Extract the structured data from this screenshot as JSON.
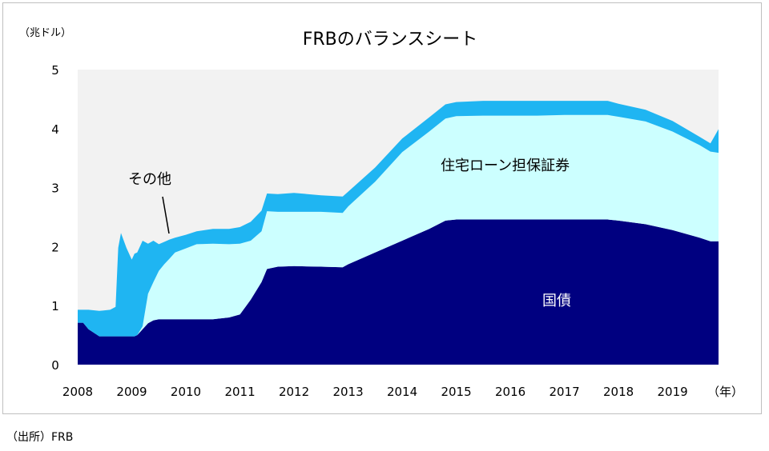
{
  "chart_data": {
    "type": "area",
    "title": "FRBのバランスシート",
    "unit_label": "（兆ドル）",
    "x_unit_label": "（年）",
    "ylim": [
      0,
      5
    ],
    "y_ticks": [
      "0",
      "1",
      "2",
      "3",
      "4",
      "5"
    ],
    "x_ticks": [
      "2008",
      "2009",
      "2010",
      "2011",
      "2012",
      "2013",
      "2014",
      "2015",
      "2016",
      "2017",
      "2018",
      "2019"
    ],
    "xlim": [
      2008.0,
      2019.85
    ],
    "stacking": "stacked",
    "grid": false,
    "legend": "none",
    "x": [
      2008.0,
      2008.1,
      2008.2,
      2008.4,
      2008.6,
      2008.7,
      2008.75,
      2008.8,
      2008.9,
      2009.0,
      2009.05,
      2009.1,
      2009.2,
      2009.3,
      2009.4,
      2009.5,
      2009.6,
      2009.7,
      2009.8,
      2010.0,
      2010.2,
      2010.5,
      2010.8,
      2011.0,
      2011.2,
      2011.4,
      2011.5,
      2011.7,
      2012.0,
      2012.5,
      2012.9,
      2013.0,
      2013.5,
      2014.0,
      2014.5,
      2014.8,
      2015.0,
      2015.5,
      2016.0,
      2016.5,
      2017.0,
      2017.5,
      2017.8,
      2018.0,
      2018.5,
      2019.0,
      2019.5,
      2019.7,
      2019.85
    ],
    "series": [
      {
        "name": "国債",
        "color": "#000080",
        "values": [
          0.71,
          0.71,
          0.6,
          0.48,
          0.48,
          0.48,
          0.48,
          0.48,
          0.48,
          0.48,
          0.48,
          0.5,
          0.6,
          0.7,
          0.75,
          0.77,
          0.77,
          0.77,
          0.77,
          0.77,
          0.77,
          0.77,
          0.8,
          0.85,
          1.1,
          1.4,
          1.62,
          1.66,
          1.67,
          1.66,
          1.65,
          1.7,
          1.9,
          2.1,
          2.3,
          2.44,
          2.46,
          2.46,
          2.46,
          2.46,
          2.46,
          2.46,
          2.46,
          2.44,
          2.38,
          2.28,
          2.15,
          2.09,
          2.09
        ]
      },
      {
        "name": "住宅ローン担保証券",
        "color": "#ccffff",
        "values": [
          0,
          0,
          0,
          0,
          0,
          0,
          0,
          0,
          0,
          0,
          0,
          0,
          0.05,
          0.5,
          0.65,
          0.82,
          0.93,
          1.03,
          1.13,
          1.2,
          1.27,
          1.28,
          1.24,
          1.2,
          1.0,
          0.86,
          0.98,
          0.93,
          0.92,
          0.93,
          0.92,
          0.98,
          1.2,
          1.5,
          1.65,
          1.73,
          1.75,
          1.76,
          1.76,
          1.76,
          1.77,
          1.77,
          1.77,
          1.76,
          1.74,
          1.67,
          1.57,
          1.52,
          1.5
        ]
      },
      {
        "name": "その他",
        "color": "#1fb5f2",
        "values": [
          0.22,
          0.22,
          0.33,
          0.43,
          0.45,
          0.5,
          1.5,
          1.75,
          1.5,
          1.3,
          1.4,
          1.4,
          1.45,
          0.85,
          0.7,
          0.45,
          0.38,
          0.32,
          0.25,
          0.23,
          0.22,
          0.25,
          0.26,
          0.28,
          0.32,
          0.35,
          0.3,
          0.3,
          0.32,
          0.28,
          0.28,
          0.25,
          0.24,
          0.23,
          0.24,
          0.24,
          0.24,
          0.25,
          0.25,
          0.25,
          0.24,
          0.24,
          0.24,
          0.22,
          0.2,
          0.18,
          0.14,
          0.14,
          0.4
        ]
      }
    ],
    "annotations": [
      "その他",
      "住宅ローン担保証券",
      "国債"
    ]
  },
  "source": "（出所）FRB",
  "colors": {
    "plot_background": "#f2f2f2",
    "frame": "#bfbfbf",
    "label_dark": "#000000",
    "label_light": "#ffffff"
  }
}
